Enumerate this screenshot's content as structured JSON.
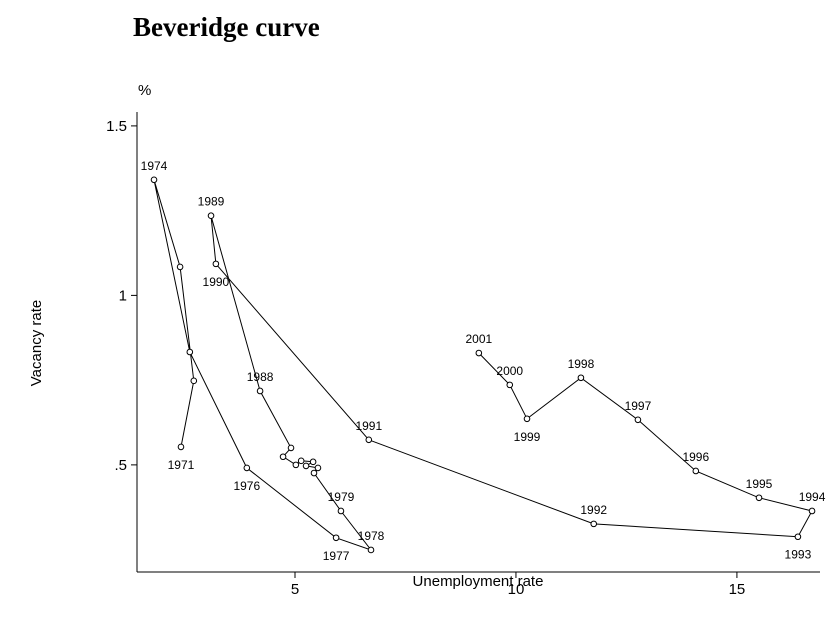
{
  "chart_data": {
    "type": "connected-scatter",
    "title": "Beveridge curve",
    "y_unit": "%",
    "x_label": "Unemployment rate",
    "y_label": "Vacancy rate",
    "color": "#000000",
    "labels": [
      "1971",
      null,
      null,
      "1974",
      null,
      "1976",
      "1977",
      "1978",
      "1979",
      null,
      null,
      null,
      null,
      null,
      null,
      null,
      null,
      "1988",
      "1989",
      "1990",
      "1991",
      "1992",
      "1993",
      "1994",
      "1995",
      "1996",
      "1997",
      "1998",
      "1999",
      "2000",
      "2001"
    ],
    "x": [
      2.42,
      2.71,
      2.4,
      1.81,
      2.62,
      3.91,
      5.93,
      6.72,
      6.04,
      5.43,
      5.52,
      5.25,
      5.41,
      5.14,
      5.02,
      4.73,
      4.91,
      4.21,
      3.1,
      3.21,
      6.67,
      11.76,
      16.38,
      16.7,
      15.5,
      14.07,
      12.76,
      11.47,
      10.25,
      9.86,
      9.16
    ],
    "values": [
      0.553,
      0.748,
      1.084,
      1.341,
      0.833,
      0.491,
      0.285,
      0.249,
      0.364,
      0.476,
      0.491,
      0.497,
      0.509,
      0.512,
      0.5,
      0.524,
      0.55,
      0.718,
      1.235,
      1.093,
      0.574,
      0.326,
      0.288,
      0.364,
      0.403,
      0.482,
      0.633,
      0.757,
      0.636,
      0.736,
      0.83
    ],
    "xlim": [
      1.425,
      16.88
    ],
    "ylim": [
      0.184,
      1.541
    ],
    "xticks": [
      5,
      10,
      15
    ],
    "yticks": [
      {
        "value": 0.5,
        "label": ".5"
      },
      1,
      1.5
    ]
  }
}
